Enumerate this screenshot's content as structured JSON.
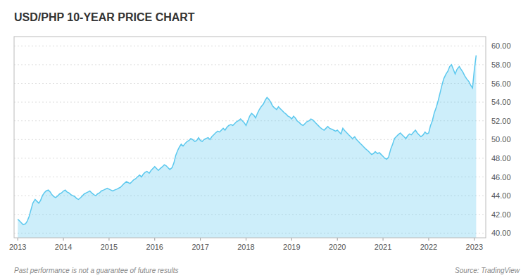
{
  "chart_data": {
    "type": "area",
    "title": "USD/PHP 10-YEAR PRICE CHART",
    "annotations": [
      "Past performance is not a guarantee of future results",
      "Source: TradingView"
    ],
    "color": "#5BC8EE",
    "grid": true,
    "xlim": [
      2012.92,
      2023.25
    ],
    "xticks": [
      2013,
      2014,
      2015,
      2016,
      2017,
      2018,
      2019,
      2020,
      2021,
      2022,
      2023
    ],
    "ylim": [
      39.5,
      61.0
    ],
    "yticks": [
      {
        "value": 40.0,
        "label": "40.00"
      },
      {
        "value": 42.0,
        "label": "42.00"
      },
      {
        "value": 44.0,
        "label": "44.00"
      },
      {
        "value": 46.0,
        "label": "46.00"
      },
      {
        "value": 48.0,
        "label": "48.00"
      },
      {
        "value": 50.0,
        "label": "50.00"
      },
      {
        "value": 52.0,
        "label": "52.00"
      },
      {
        "value": 54.0,
        "label": "54.00"
      },
      {
        "value": 56.0,
        "label": "56.00"
      },
      {
        "value": 58.0,
        "label": "58.00"
      },
      {
        "value": 60.0,
        "label": "60.00"
      }
    ],
    "x": [
      2013.0,
      2013.04,
      2013.08,
      2013.12,
      2013.17,
      2013.21,
      2013.25,
      2013.29,
      2013.33,
      2013.38,
      2013.42,
      2013.46,
      2013.5,
      2013.54,
      2013.58,
      2013.62,
      2013.67,
      2013.71,
      2013.75,
      2013.79,
      2013.83,
      2013.88,
      2013.92,
      2013.96,
      2014.0,
      2014.04,
      2014.08,
      2014.12,
      2014.17,
      2014.21,
      2014.25,
      2014.29,
      2014.33,
      2014.38,
      2014.42,
      2014.46,
      2014.5,
      2014.54,
      2014.58,
      2014.62,
      2014.67,
      2014.71,
      2014.75,
      2014.79,
      2014.83,
      2014.88,
      2014.92,
      2014.96,
      2015.0,
      2015.04,
      2015.08,
      2015.12,
      2015.17,
      2015.21,
      2015.25,
      2015.29,
      2015.33,
      2015.38,
      2015.42,
      2015.46,
      2015.5,
      2015.54,
      2015.58,
      2015.62,
      2015.67,
      2015.71,
      2015.75,
      2015.79,
      2015.83,
      2015.88,
      2015.92,
      2015.96,
      2016.0,
      2016.04,
      2016.08,
      2016.12,
      2016.17,
      2016.21,
      2016.25,
      2016.29,
      2016.33,
      2016.38,
      2016.42,
      2016.46,
      2016.5,
      2016.54,
      2016.58,
      2016.62,
      2016.67,
      2016.71,
      2016.75,
      2016.79,
      2016.83,
      2016.88,
      2016.92,
      2016.96,
      2017.0,
      2017.04,
      2017.08,
      2017.12,
      2017.17,
      2017.21,
      2017.25,
      2017.29,
      2017.33,
      2017.38,
      2017.42,
      2017.46,
      2017.5,
      2017.54,
      2017.58,
      2017.62,
      2017.67,
      2017.71,
      2017.75,
      2017.79,
      2017.83,
      2017.88,
      2017.92,
      2017.96,
      2018.0,
      2018.04,
      2018.08,
      2018.12,
      2018.17,
      2018.21,
      2018.25,
      2018.29,
      2018.33,
      2018.38,
      2018.42,
      2018.46,
      2018.5,
      2018.54,
      2018.58,
      2018.62,
      2018.67,
      2018.71,
      2018.75,
      2018.79,
      2018.83,
      2018.88,
      2018.92,
      2018.96,
      2019.0,
      2019.04,
      2019.08,
      2019.12,
      2019.17,
      2019.21,
      2019.25,
      2019.29,
      2019.33,
      2019.38,
      2019.42,
      2019.46,
      2019.5,
      2019.54,
      2019.58,
      2019.62,
      2019.67,
      2019.71,
      2019.75,
      2019.79,
      2019.83,
      2019.88,
      2019.92,
      2019.96,
      2020.0,
      2020.04,
      2020.08,
      2020.12,
      2020.17,
      2020.21,
      2020.25,
      2020.29,
      2020.33,
      2020.38,
      2020.42,
      2020.46,
      2020.5,
      2020.54,
      2020.58,
      2020.62,
      2020.67,
      2020.71,
      2020.75,
      2020.79,
      2020.83,
      2020.88,
      2020.92,
      2020.96,
      2021.0,
      2021.04,
      2021.08,
      2021.12,
      2021.17,
      2021.21,
      2021.25,
      2021.29,
      2021.33,
      2021.38,
      2021.42,
      2021.46,
      2021.5,
      2021.54,
      2021.58,
      2021.62,
      2021.67,
      2021.71,
      2021.75,
      2021.79,
      2021.83,
      2021.88,
      2021.92,
      2021.96,
      2022.0,
      2022.04,
      2022.08,
      2022.12,
      2022.17,
      2022.21,
      2022.25,
      2022.29,
      2022.33,
      2022.38,
      2022.42,
      2022.46,
      2022.5,
      2022.54,
      2022.58,
      2022.62,
      2022.67,
      2022.71,
      2022.75,
      2022.79,
      2022.83,
      2022.88,
      2022.92,
      2022.96,
      2023.0,
      2023.04
    ],
    "values": [
      41.5,
      41.3,
      41.1,
      40.9,
      41.0,
      41.3,
      41.8,
      42.5,
      43.2,
      43.6,
      43.4,
      43.2,
      43.5,
      44.0,
      44.3,
      44.5,
      44.6,
      44.4,
      44.1,
      43.9,
      43.8,
      44.0,
      44.2,
      44.3,
      44.5,
      44.6,
      44.4,
      44.3,
      44.1,
      44.0,
      43.9,
      43.7,
      43.6,
      43.8,
      44.0,
      44.2,
      44.3,
      44.4,
      44.5,
      44.3,
      44.1,
      44.0,
      44.2,
      44.3,
      44.5,
      44.6,
      44.7,
      44.8,
      44.7,
      44.6,
      44.5,
      44.6,
      44.7,
      44.8,
      44.9,
      45.1,
      45.3,
      45.5,
      45.4,
      45.3,
      45.5,
      45.7,
      45.8,
      46.0,
      46.2,
      46.0,
      46.3,
      46.5,
      46.6,
      46.4,
      46.7,
      46.9,
      47.1,
      46.9,
      46.7,
      46.9,
      47.1,
      47.3,
      47.2,
      47.0,
      46.8,
      47.0,
      47.5,
      48.3,
      48.8,
      49.2,
      49.5,
      49.3,
      49.6,
      49.8,
      49.9,
      50.1,
      50.0,
      49.8,
      49.9,
      50.2,
      49.9,
      49.8,
      50.0,
      50.1,
      50.2,
      50.0,
      50.3,
      50.5,
      50.7,
      50.9,
      50.8,
      51.0,
      51.2,
      51.0,
      51.3,
      51.5,
      51.6,
      51.5,
      51.7,
      51.9,
      52.0,
      52.2,
      52.0,
      51.8,
      51.5,
      52.0,
      52.5,
      52.8,
      52.6,
      52.3,
      52.8,
      53.2,
      53.5,
      53.8,
      54.2,
      54.5,
      54.3,
      54.0,
      53.6,
      53.4,
      53.2,
      53.5,
      53.3,
      53.1,
      52.9,
      52.7,
      52.5,
      52.4,
      52.2,
      52.5,
      52.3,
      52.0,
      51.8,
      51.6,
      51.5,
      51.7,
      51.9,
      52.0,
      52.2,
      52.1,
      51.9,
      51.7,
      51.5,
      51.3,
      51.1,
      51.0,
      51.2,
      51.4,
      51.2,
      51.1,
      51.0,
      50.9,
      51.0,
      50.8,
      50.6,
      51.2,
      50.9,
      50.7,
      50.5,
      50.3,
      50.1,
      50.3,
      50.0,
      49.8,
      49.6,
      49.4,
      49.2,
      49.0,
      48.8,
      48.6,
      48.4,
      48.5,
      48.7,
      48.5,
      48.6,
      48.4,
      48.2,
      48.0,
      47.9,
      48.1,
      49.0,
      49.5,
      50.1,
      50.3,
      50.5,
      50.7,
      50.5,
      50.3,
      50.1,
      50.4,
      50.6,
      50.5,
      50.8,
      51.0,
      50.7,
      50.5,
      50.3,
      50.5,
      50.8,
      50.6,
      50.7,
      51.5,
      52.0,
      52.8,
      53.5,
      54.2,
      55.0,
      55.8,
      56.5,
      57.0,
      57.3,
      57.8,
      58.0,
      57.5,
      57.0,
      57.5,
      57.8,
      57.5,
      57.2,
      56.8,
      56.5,
      56.2,
      55.8,
      55.5,
      57.5,
      59.0
    ]
  }
}
